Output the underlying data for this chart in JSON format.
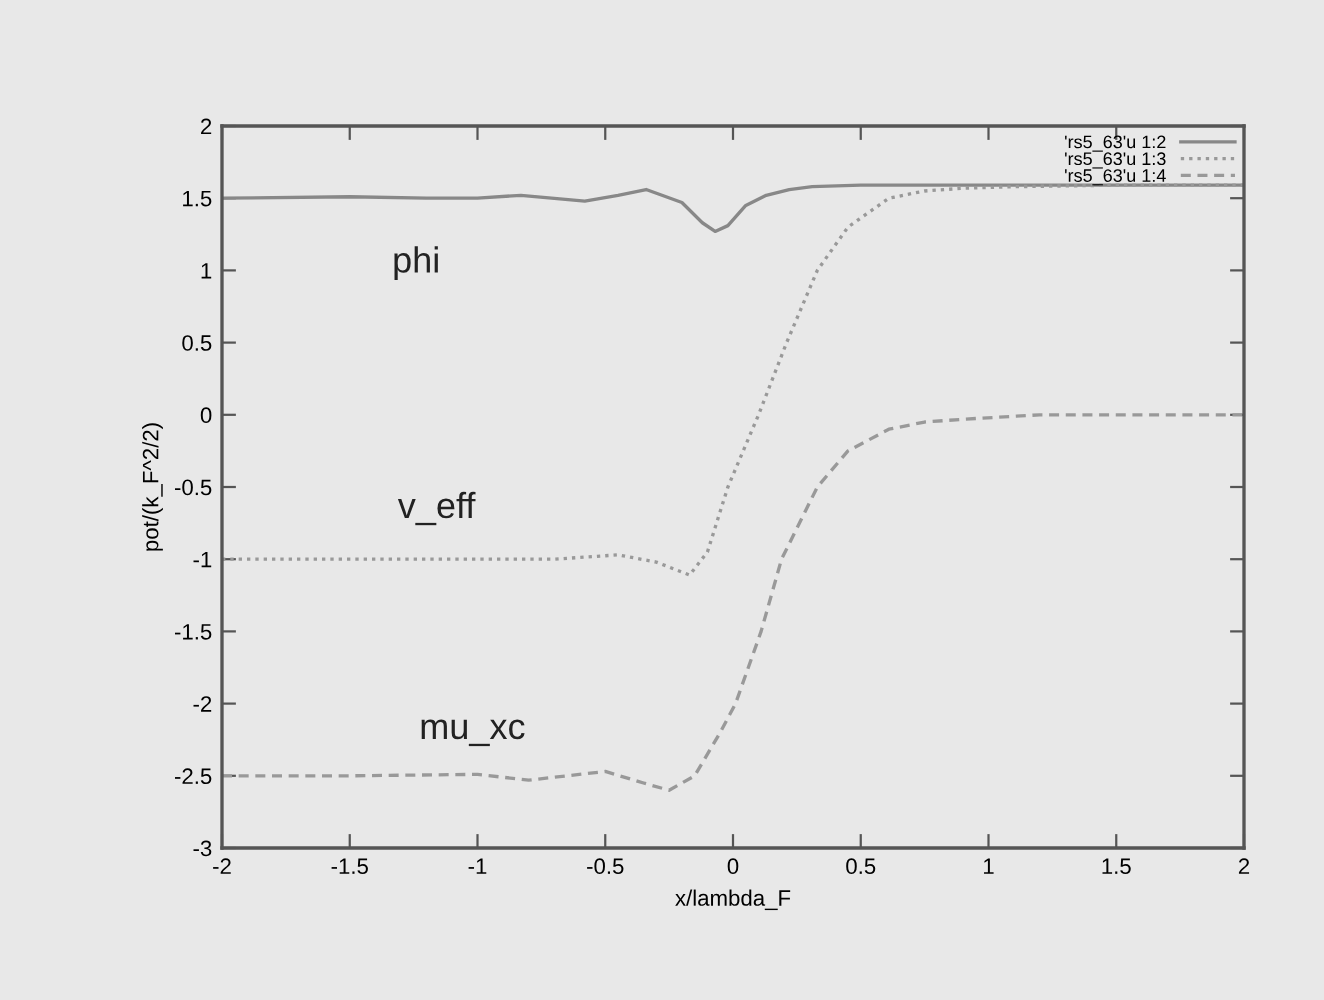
{
  "chart_data": {
    "type": "line",
    "xlabel": "x/lambda_F",
    "ylabel": "pot/(k_F^2/2)",
    "xlim": [
      -2,
      2
    ],
    "ylim": [
      -3,
      2
    ],
    "xticks": [
      -2,
      -1.5,
      -1,
      -0.5,
      0,
      0.5,
      1,
      1.5,
      2
    ],
    "yticks": [
      -3,
      -2.5,
      -2,
      -1.5,
      -1,
      -0.5,
      0,
      0.5,
      1,
      1.5,
      2
    ],
    "grid": false,
    "legend": "top right",
    "series": [
      {
        "name": "'rs5_63'u 1:2",
        "color": "#888888",
        "line_style": "solid",
        "x": [
          -2,
          -1.5,
          -1.2,
          -1,
          -0.83,
          -0.58,
          -0.45,
          -0.34,
          -0.2,
          -0.12,
          -0.07,
          -0.02,
          0.05,
          0.13,
          0.22,
          0.31,
          0.5,
          1,
          1.5,
          2
        ],
        "values": [
          1.5,
          1.51,
          1.5,
          1.5,
          1.52,
          1.48,
          1.52,
          1.56,
          1.47,
          1.33,
          1.27,
          1.31,
          1.45,
          1.52,
          1.56,
          1.58,
          1.59,
          1.59,
          1.59,
          1.59
        ]
      },
      {
        "name": "'rs5_63'u 1:3",
        "color": "#999999",
        "line_style": "dotted",
        "x": [
          -2,
          -1.5,
          -1,
          -0.7,
          -0.45,
          -0.3,
          -0.17,
          -0.1,
          -0.02,
          0.1,
          0.21,
          0.33,
          0.45,
          0.61,
          0.75,
          0.91,
          1.1,
          1.5,
          2
        ],
        "values": [
          -1.0,
          -1.0,
          -1.0,
          -1.0,
          -0.97,
          -1.02,
          -1.11,
          -0.95,
          -0.5,
          0.0,
          0.5,
          1.0,
          1.3,
          1.5,
          1.55,
          1.57,
          1.58,
          1.59,
          1.59
        ]
      },
      {
        "name": "'rs5_63'u 1:4",
        "color": "#999999",
        "line_style": "dashed",
        "x": [
          -2,
          -1.5,
          -1.0,
          -0.8,
          -0.5,
          -0.35,
          -0.25,
          -0.15,
          -0.05,
          0.01,
          0.11,
          0.19,
          0.33,
          0.45,
          0.61,
          0.75,
          0.91,
          1.2,
          1.5,
          2
        ],
        "values": [
          -2.5,
          -2.5,
          -2.49,
          -2.53,
          -2.47,
          -2.55,
          -2.6,
          -2.5,
          -2.2,
          -2.0,
          -1.5,
          -1.0,
          -0.5,
          -0.25,
          -0.1,
          -0.05,
          -0.03,
          0.0,
          0.0,
          0.0
        ]
      }
    ],
    "annotations": [
      "phi",
      "v_eff",
      "mu_xc"
    ]
  }
}
